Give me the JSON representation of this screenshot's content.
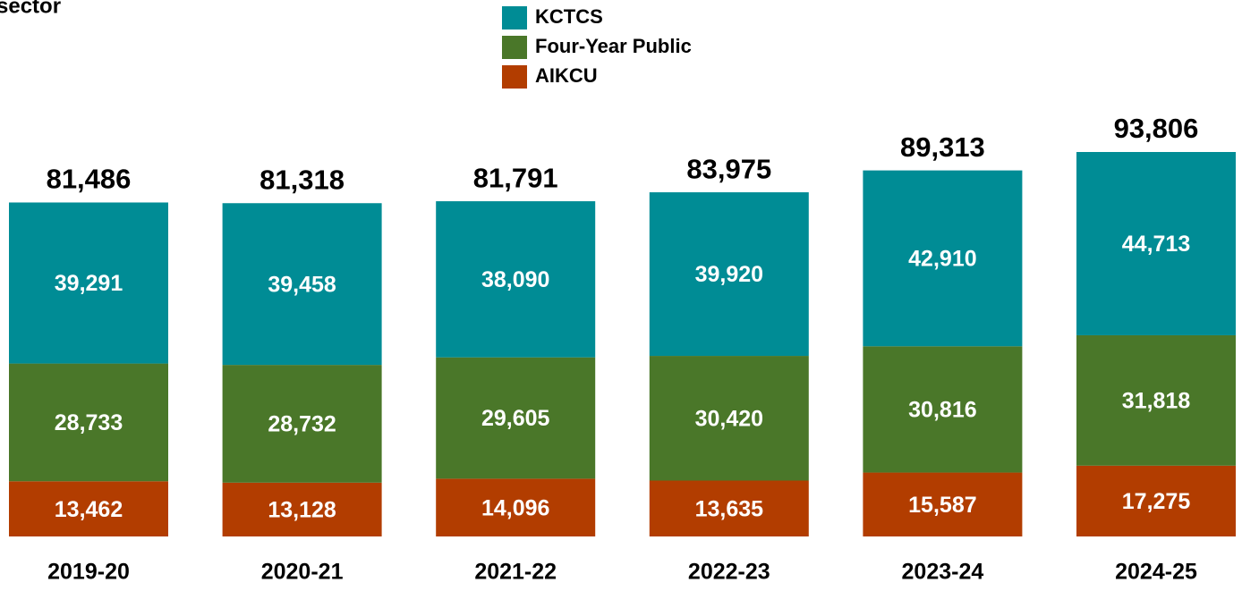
{
  "chart_data": {
    "type": "stacked_bar",
    "title": "sector",
    "categories": [
      "2019-20",
      "2020-21",
      "2021-22",
      "2022-23",
      "2023-24",
      "2024-25"
    ],
    "series": [
      {
        "name": "KCTCS",
        "color": "#008c95",
        "values": [
          39291,
          39458,
          38090,
          39920,
          42910,
          44713
        ],
        "value_labels": [
          "39,291",
          "39,458",
          "38,090",
          "39,920",
          "42,910",
          "44,713"
        ]
      },
      {
        "name": "Four-Year Public",
        "color": "#4a7729",
        "values": [
          28733,
          28732,
          29605,
          30420,
          30816,
          31818
        ],
        "value_labels": [
          "28,733",
          "28,732",
          "29,605",
          "30,420",
          "30,816",
          "31,818"
        ]
      },
      {
        "name": "AIKCU",
        "color": "#b23d00",
        "values": [
          13462,
          13128,
          14096,
          13635,
          15587,
          17275
        ],
        "value_labels": [
          "13,462",
          "13,128",
          "14,096",
          "13,635",
          "15,587",
          "17,275"
        ]
      }
    ],
    "totals": [
      81486,
      81318,
      81791,
      83975,
      89313,
      93806
    ],
    "total_labels": [
      "81,486",
      "81,318",
      "81,791",
      "83,975",
      "89,313",
      "93,806"
    ]
  }
}
